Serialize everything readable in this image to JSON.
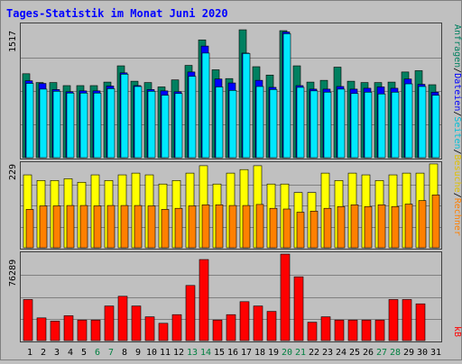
{
  "title": "Tages-Statistik im Monat Juni 2020",
  "colors": {
    "bg": "#c0c0c0",
    "title": "#0000ff",
    "grid": "#808080",
    "anfragen": "#008060",
    "dateien": "#0000ff",
    "seiten": "#00e8ff",
    "besuche": "#ffff00",
    "rechner": "#ff8000",
    "kb": "#ff0000",
    "weekend": "#008040",
    "weekday": "#000000"
  },
  "legend": {
    "anfragen": "Anfragen",
    "dateien": "Dateien",
    "seiten": "Seiten",
    "besuche": "Besuche",
    "rechner": "Rechner",
    "kb": "kB",
    "sep": "/"
  },
  "chart_data": [
    {
      "type": "bar",
      "panel": "top",
      "ymax_label": "1517",
      "ylim": [
        0,
        1517
      ],
      "categories": [
        "1",
        "2",
        "3",
        "4",
        "5",
        "6",
        "7",
        "8",
        "9",
        "10",
        "11",
        "12",
        "13",
        "14",
        "15",
        "16",
        "17",
        "18",
        "19",
        "20",
        "21",
        "22",
        "23",
        "24",
        "25",
        "26",
        "27",
        "28",
        "29",
        "30",
        "31"
      ],
      "weekend_days": [
        "6",
        "7",
        "13",
        "14",
        "20",
        "21",
        "27",
        "28"
      ],
      "series": [
        {
          "name": "Anfragen",
          "values": [
            955,
            855,
            855,
            820,
            820,
            820,
            860,
            1045,
            870,
            855,
            805,
            885,
            1050,
            1340,
            1000,
            900,
            1455,
            1035,
            940,
            1445,
            1045,
            860,
            880,
            1030,
            870,
            855,
            855,
            860,
            975,
            990,
            830
          ]
        },
        {
          "name": "Dateien",
          "values": [
            875,
            845,
            775,
            750,
            760,
            760,
            815,
            965,
            820,
            775,
            760,
            750,
            975,
            1270,
            895,
            850,
            1190,
            880,
            800,
            1430,
            820,
            780,
            780,
            810,
            780,
            790,
            805,
            790,
            895,
            835,
            745
          ]
        },
        {
          "name": "Seiten",
          "values": [
            845,
            780,
            755,
            735,
            735,
            735,
            785,
            950,
            810,
            755,
            710,
            730,
            925,
            1190,
            805,
            765,
            1185,
            810,
            775,
            1410,
            800,
            760,
            745,
            780,
            730,
            745,
            725,
            745,
            840,
            810,
            710
          ]
        }
      ]
    },
    {
      "type": "bar",
      "panel": "middle",
      "ymax_label": "229",
      "ylim": [
        0,
        229
      ],
      "categories": [
        "1",
        "2",
        "3",
        "4",
        "5",
        "6",
        "7",
        "8",
        "9",
        "10",
        "11",
        "12",
        "13",
        "14",
        "15",
        "16",
        "17",
        "18",
        "19",
        "20",
        "21",
        "22",
        "23",
        "24",
        "25",
        "26",
        "27",
        "28",
        "29",
        "30",
        "31"
      ],
      "series": [
        {
          "name": "Besuche",
          "values": [
            207,
            191,
            191,
            196,
            186,
            207,
            191,
            207,
            212,
            207,
            181,
            191,
            212,
            233,
            181,
            212,
            222,
            233,
            181,
            181,
            157,
            157,
            212,
            191,
            212,
            207,
            191,
            207,
            212,
            212,
            238
          ]
        },
        {
          "name": "Rechner",
          "values": [
            109,
            119,
            119,
            120,
            120,
            119,
            120,
            120,
            120,
            119,
            109,
            112,
            119,
            122,
            122,
            120,
            120,
            123,
            112,
            110,
            101,
            104,
            112,
            117,
            122,
            117,
            122,
            117,
            124,
            134,
            150
          ]
        }
      ]
    },
    {
      "type": "bar",
      "panel": "bottom",
      "ymax_label": "76289",
      "ylim": [
        0,
        76289
      ],
      "categories": [
        "1",
        "2",
        "3",
        "4",
        "5",
        "6",
        "7",
        "8",
        "9",
        "10",
        "11",
        "12",
        "13",
        "14",
        "15",
        "16",
        "17",
        "18",
        "19",
        "20",
        "21",
        "22",
        "23",
        "24",
        "25",
        "26",
        "27",
        "28",
        "29",
        "30",
        "31"
      ],
      "series": [
        {
          "name": "kB",
          "values": [
            38000,
            21000,
            18000,
            23000,
            19000,
            19000,
            32000,
            41000,
            32000,
            22000,
            16000,
            24000,
            51000,
            75000,
            19000,
            24000,
            36000,
            32000,
            27000,
            80000,
            59000,
            17000,
            22000,
            19000,
            19000,
            19000,
            19000,
            38000,
            38000,
            34000,
            0
          ]
        }
      ]
    }
  ]
}
